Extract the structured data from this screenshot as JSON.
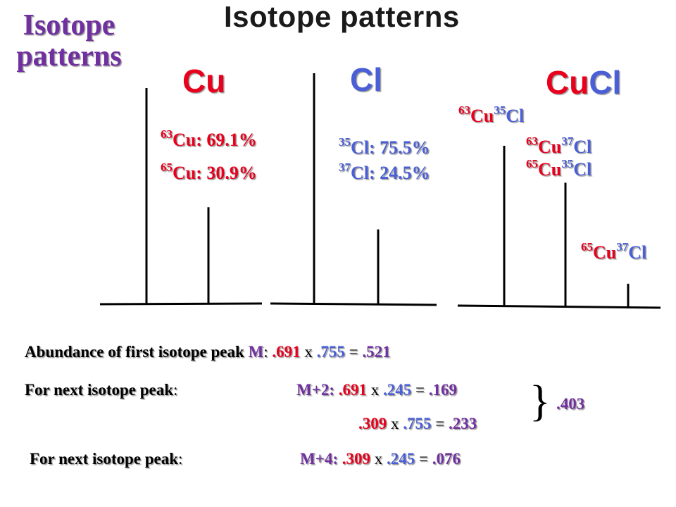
{
  "side_title": "Isotope patterns",
  "banner_title": "Isotope patterns",
  "panels": {
    "cu": {
      "title": "Cu",
      "labels": [
        {
          "mass": "63",
          "text": "Cu: 69.1%"
        },
        {
          "mass": "65",
          "text": "Cu: 30.9%"
        }
      ],
      "peaks": [
        1.0,
        0.447
      ]
    },
    "cl": {
      "title": "Cl",
      "labels": [
        {
          "mass": "35",
          "text": "Cl: 75.5%"
        },
        {
          "mass": "37",
          "text": "Cl: 24.5%"
        }
      ],
      "peaks": [
        1.0,
        0.325
      ]
    },
    "cucl": {
      "title_cu": "Cu",
      "title_cl": "Cl",
      "labels": [
        {
          "m1": "63",
          "e1": "Cu",
          "m2": "35",
          "e2": "Cl"
        },
        {
          "m1": "63",
          "e1": "Cu",
          "m2": "37",
          "e2": "Cl"
        },
        {
          "m1": "65",
          "e1": "Cu",
          "m2": "35",
          "e2": "Cl"
        },
        {
          "m1": "65",
          "e1": "Cu",
          "m2": "37",
          "e2": "Cl"
        }
      ],
      "peaks": [
        1.0,
        0.773,
        0.146
      ]
    }
  },
  "calc": {
    "line1": {
      "label": "Abundance of first isotope peak ",
      "peak": "M",
      "colon": ":",
      "a": ".691",
      "op": " x ",
      "b": ".755",
      "eq": " = ",
      "r": ".521"
    },
    "line2": {
      "label": "For next isotope peak",
      "colon": ":",
      "peak": "M+2:",
      "a": ".691",
      "op": " x ",
      "b": ".245",
      "eq": " = ",
      "r": ".169"
    },
    "line3": {
      "a": ".309",
      "op": " x ",
      "b": ".755",
      "eq": " = ",
      "r": ".233"
    },
    "brace": "}",
    "sum": ".403",
    "line4": {
      "label": "For next isotope peak",
      "colon": ":",
      "peak": "M+4:",
      "a": ".309",
      "op": " x ",
      "b": ".245",
      "eq": " = ",
      "r": ".076"
    }
  },
  "colors": {
    "title": "#7030a0",
    "red": "#e8001c",
    "blue": "#4a5fd6",
    "plot": "#000000"
  }
}
